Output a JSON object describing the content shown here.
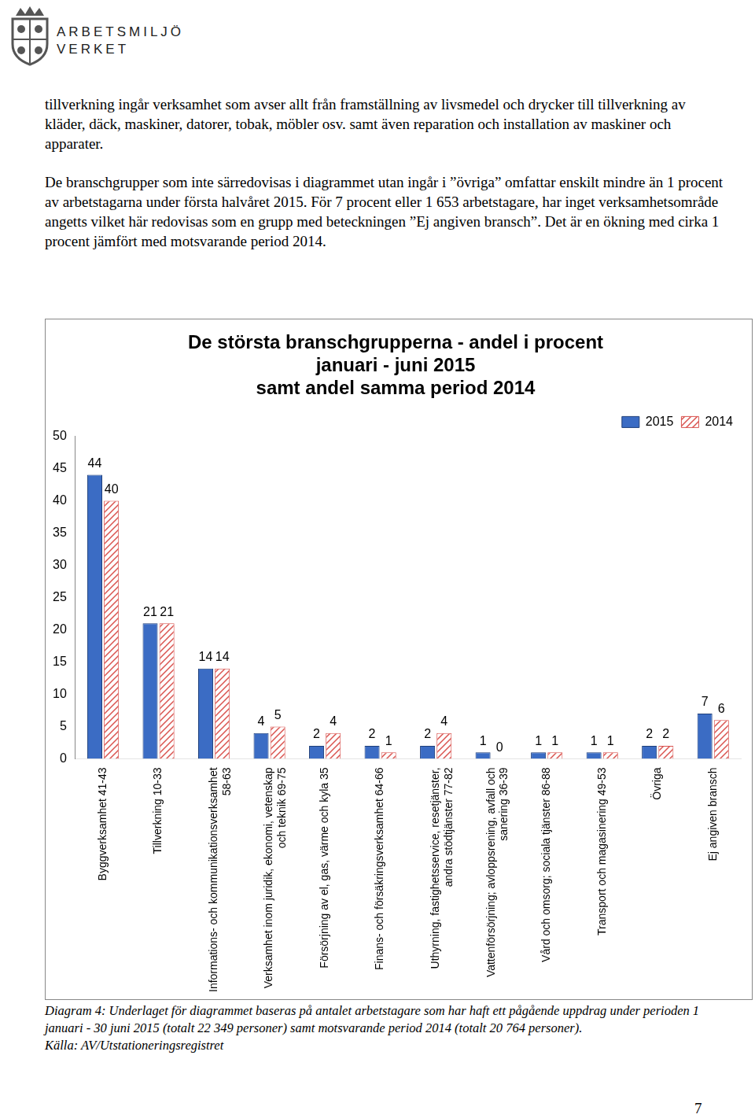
{
  "header": {
    "org_lines": [
      "ARBETSMILJÖ",
      "VERKET"
    ]
  },
  "paragraphs": [
    "tillverkning ingår verksamhet som avser allt från framställning av livsmedel och drycker till tillverkning av kläder, däck, maskiner, datorer, tobak, möbler osv. samt även reparation och installation av maskiner och apparater.",
    "De branschgrupper som inte särredovisas i diagrammet utan ingår i ”övriga” omfattar enskilt mindre än 1 procent av arbetstagarna under första halvåret 2015. För 7 procent eller 1 653 arbetstagare, har inget verksamhetsområde angetts vilket här redovisas som en grupp med beteckningen ”Ej angiven bransch”. Det är en ökning med cirka 1 procent jämfört med motsvarande period 2014."
  ],
  "chart_data": {
    "type": "bar",
    "title": [
      "De största branschgrupperna - andel i procent",
      "januari - juni 2015",
      "samt andel samma period 2014"
    ],
    "categories": [
      "Byggverksamhet 41-43",
      "Tillverkning 10-33",
      "Informations- och kommunikationsverksamhet 58-63",
      "Verksamhet inom juridik, ekonomi, vetenskap och teknik 69-75",
      "Försörjning av el, gas, värme och kyla 35",
      "Finans- och försäkringsverksamhet 64-66",
      "Uthyrning, fastighetsservice, resetjänster, andra stödtjänster 77-82",
      "Vattenförsörjning; avloppsrening, avfall och sanering 36-39",
      "Vård och omsorg; sociala tjänster 86-88",
      "Transport och magasinering 49-53",
      "Övriga",
      "Ej angiven bransch"
    ],
    "series": [
      {
        "name": "2015",
        "color": "#3b6cc4",
        "values": [
          44,
          21,
          14,
          4,
          2,
          2,
          2,
          1,
          1,
          1,
          2,
          7
        ]
      },
      {
        "name": "2014",
        "color": "#d9534f",
        "values": [
          40,
          21,
          14,
          5,
          4,
          1,
          4,
          0,
          1,
          1,
          2,
          6
        ]
      }
    ],
    "ylim": [
      0,
      50
    ],
    "yticks": [
      0,
      5,
      10,
      15,
      20,
      25,
      30,
      35,
      40,
      45,
      50
    ],
    "grid": false,
    "legend": "top-right",
    "data_labels": true
  },
  "caption": [
    "Diagram 4: Underlaget för diagrammet baseras på antalet arbetstagare som har haft ett pågående uppdrag under perioden 1 januari - 30 juni 2015 (totalt 22 349 personer) samt motsvarande period 2014 (totalt 20 764 personer).",
    "Källa: AV/Utstationeringsregistret"
  ],
  "page_number": "7"
}
